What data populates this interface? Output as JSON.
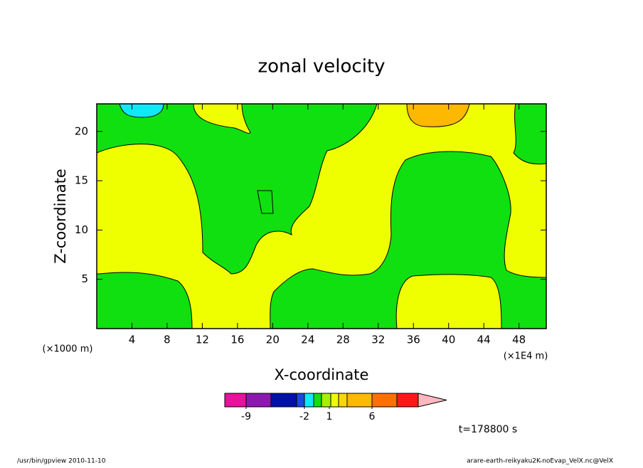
{
  "chart_data": {
    "type": "contour",
    "title": "zonal velocity",
    "x_label": "X-coordinate",
    "y_label": "Z-coordinate",
    "x_unit": "(×1000 m)",
    "x_unit_right": "(×1E4 m)",
    "xlim": [
      0,
      51.1
    ],
    "xticks": [
      4,
      8,
      12,
      16,
      20,
      24,
      28,
      32,
      36,
      40,
      44,
      48
    ],
    "ylim": [
      0,
      22.8
    ],
    "yticks": [
      5,
      10,
      15,
      20
    ],
    "colorbar": {
      "colors": [
        "#e8129c",
        "#8c18b0",
        "#0010a8",
        "#1848e0",
        "#10e8f8",
        "#10e010",
        "#a8f000",
        "#f0ff00",
        "#f8d800",
        "#ffb800",
        "#ff7000",
        "#ff1818",
        "#ff8080",
        "#ffb8c0"
      ],
      "ticks": [
        -9,
        -2,
        1,
        6
      ]
    },
    "annotations": [
      "t=178800 s",
      "/usr/bin/gpview  2010-11-10",
      "arare-earth-reikyaku2K-noEvap_VelX.nc@VelX"
    ]
  }
}
